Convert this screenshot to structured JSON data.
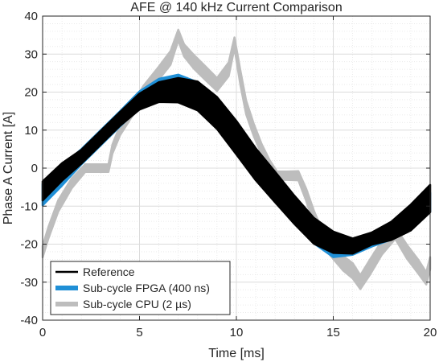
{
  "chart_data": {
    "type": "line",
    "title": "AFE @ 140 kHz Current Comparison",
    "xlabel": "Time [ms]",
    "ylabel": "Phase A Current [A]",
    "xlim": [
      0,
      20
    ],
    "ylim": [
      -40,
      40
    ],
    "xticks": [
      0,
      5,
      10,
      15,
      20
    ],
    "yticks": [
      -40,
      -30,
      -20,
      -10,
      0,
      10,
      20,
      30,
      40
    ],
    "xtick_labels": [
      "0",
      "5",
      "10",
      "15",
      "20"
    ],
    "ytick_labels": [
      "-40",
      "-30",
      "-20",
      "-10",
      "0",
      "10",
      "20",
      "30",
      "40"
    ],
    "grid": true,
    "legend_position": "bottom-left",
    "series": [
      {
        "name": "Sub-cycle CPU (2 µs)",
        "color": "#bdbdbd",
        "band": true,
        "x": [
          0,
          0.3,
          0.8,
          1.5,
          2.2,
          3.0,
          3.4,
          3.6,
          4.0,
          4.6,
          5.2,
          6.0,
          6.6,
          7.0,
          7.3,
          7.8,
          8.4,
          9.0,
          9.6,
          9.9,
          10.2,
          10.5,
          10.9,
          11.3,
          11.7,
          12.1,
          12.6,
          13.2,
          13.6,
          14.0,
          14.5,
          15.0,
          15.5,
          16.0,
          16.4,
          16.9,
          17.5,
          18.2,
          18.8,
          19.4,
          19.8,
          20
        ],
        "y": [
          -22,
          -17,
          -10,
          -4,
          0,
          0,
          0,
          5,
          10,
          15,
          20,
          25,
          29,
          35,
          31,
          28,
          25,
          22,
          26,
          33,
          24,
          16,
          10,
          5,
          1,
          -2,
          -2,
          -2,
          -7,
          -13,
          -19,
          -22,
          -25,
          -27,
          -30,
          -26,
          -21,
          -17,
          -22,
          -26,
          -29,
          -25
        ],
        "half_width": [
          1.5,
          1.5,
          1.5,
          1.3,
          1.0,
          1.0,
          1.0,
          1.2,
          1.3,
          1.5,
          1.6,
          1.7,
          1.8,
          1.4,
          1.6,
          1.8,
          1.8,
          1.7,
          1.8,
          1.4,
          1.9,
          1.8,
          1.6,
          1.4,
          1.2,
          1.1,
          1.1,
          1.2,
          1.6,
          1.8,
          1.8,
          1.9,
          1.9,
          2.0,
          1.8,
          2.0,
          1.8,
          1.6,
          1.8,
          1.8,
          1.6,
          1.6
        ]
      },
      {
        "name": "Sub-cycle FPGA (400 ns)",
        "color": "#1f8fd6",
        "band": true,
        "x": [
          0,
          1,
          2,
          3,
          4,
          5,
          6,
          7,
          8,
          9,
          10,
          11,
          12,
          13,
          14,
          15,
          16,
          17,
          18,
          19,
          20
        ],
        "y": [
          -7,
          -2,
          3,
          8,
          13,
          18,
          21,
          22,
          20,
          15,
          8,
          1,
          -5,
          -11,
          -17,
          -21,
          -21,
          -19,
          -17,
          -14,
          -9
        ],
        "half_width": [
          2.8,
          2.6,
          2.0,
          2.0,
          2.0,
          2.2,
          2.5,
          2.6,
          2.6,
          2.8,
          3.0,
          3.0,
          3.0,
          2.9,
          2.8,
          2.4,
          1.8,
          1.6,
          1.8,
          2.2,
          2.5
        ]
      },
      {
        "name": "Reference",
        "color": "#000000",
        "band": true,
        "x": [
          0,
          1,
          2,
          3,
          4,
          5,
          6,
          7,
          8,
          9,
          10,
          11,
          12,
          13,
          14,
          15,
          16,
          17,
          18,
          19,
          20
        ],
        "y": [
          -6,
          -1,
          3,
          8,
          13,
          17.5,
          20,
          20.5,
          19,
          14.5,
          8,
          1,
          -5,
          -11,
          -16.5,
          -19.5,
          -20.5,
          -18.5,
          -16.5,
          -13,
          -8
        ],
        "half_width": [
          2.5,
          2.3,
          1.8,
          1.8,
          1.8,
          2.1,
          2.6,
          3.2,
          3.8,
          4.2,
          4.4,
          4.2,
          4.0,
          3.7,
          3.4,
          2.8,
          2.0,
          1.6,
          2.4,
          3.4,
          3.6
        ]
      }
    ],
    "legend_order": [
      "Reference",
      "Sub-cycle FPGA (400 ns)",
      "Sub-cycle CPU (2 µs)"
    ]
  }
}
